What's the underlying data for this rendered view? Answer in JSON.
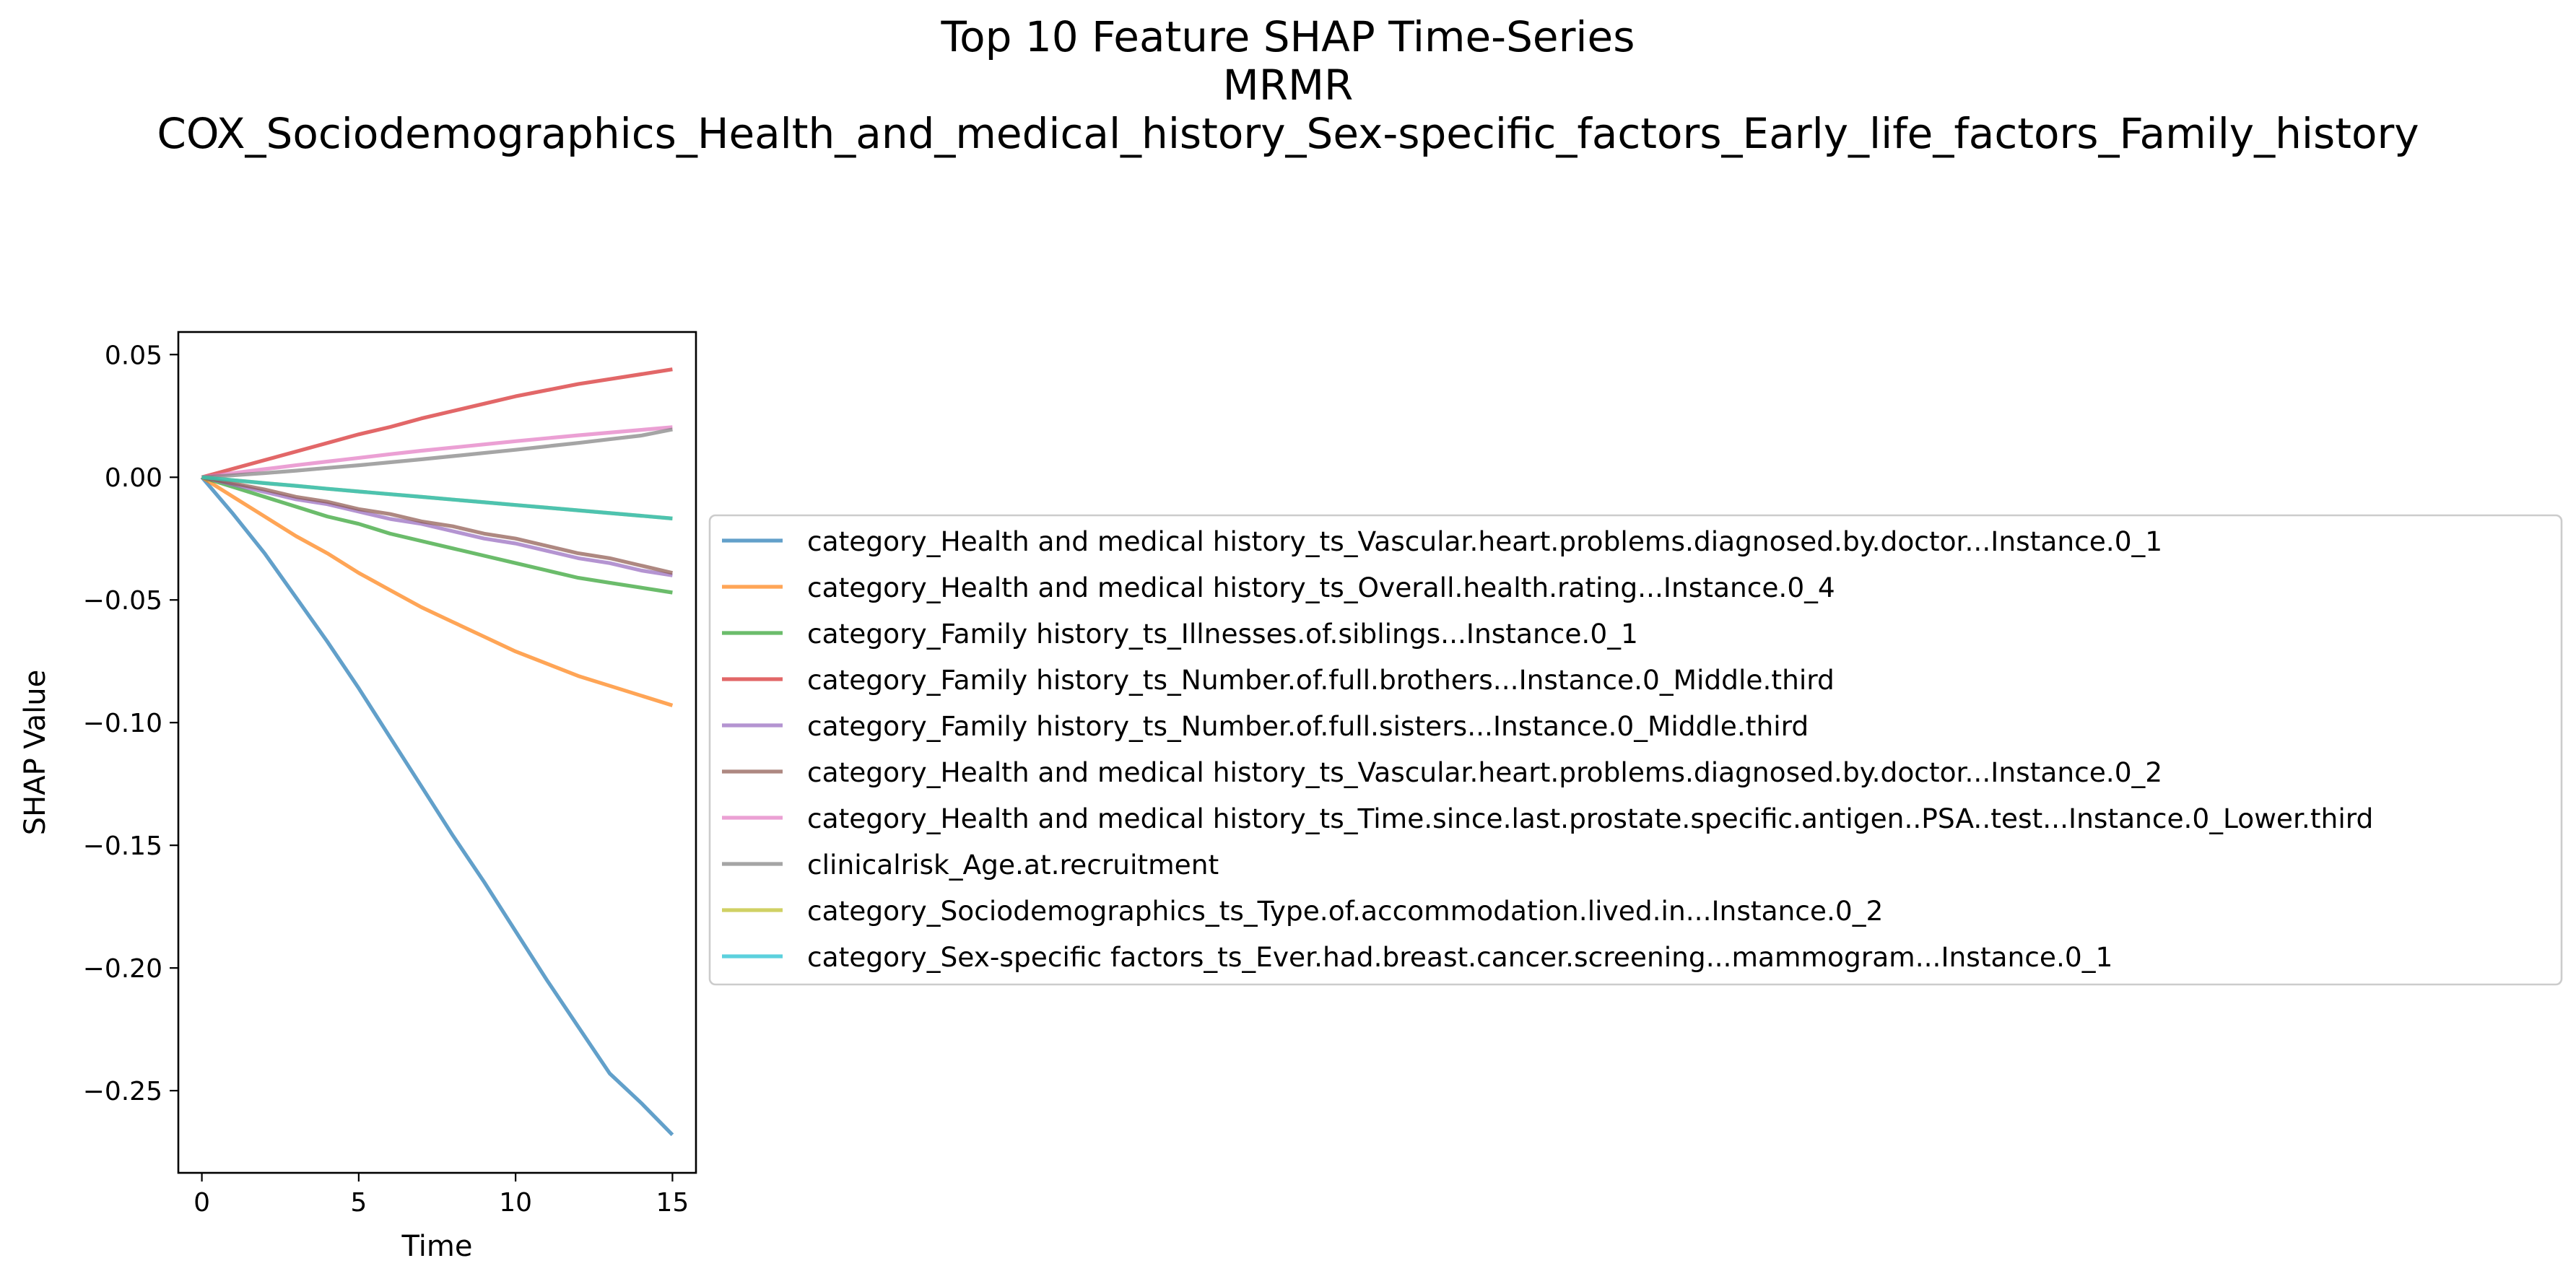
{
  "chart_data": {
    "type": "line",
    "title_lines": [
      "Top 10 Feature SHAP Time-Series",
      "MRMR",
      "COX_Sociodemographics_Health_and_medical_history_Sex-specific_factors_Early_life_factors_Family_history"
    ],
    "xlabel": "Time",
    "ylabel": "SHAP Value",
    "xlim": [
      -0.75,
      15.75
    ],
    "ylim": [
      -0.2835,
      0.0592
    ],
    "xticks": [
      0,
      5,
      10,
      15
    ],
    "xtick_labels": [
      "0",
      "5",
      "10",
      "15"
    ],
    "yticks": [
      0.05,
      0.0,
      -0.05,
      -0.1,
      -0.15,
      -0.2,
      -0.25
    ],
    "ytick_labels": [
      "0.05",
      "0.00",
      "−0.05",
      "−0.10",
      "−0.15",
      "−0.20",
      "−0.25"
    ],
    "grid": false,
    "legend_placement": "center-right, outside plot",
    "x": [
      0,
      1,
      2,
      3,
      4,
      5,
      6,
      7,
      8,
      9,
      10,
      11,
      12,
      13,
      14,
      15
    ],
    "series": [
      {
        "name": "category_Health and medical history_ts_Vascular.heart.problems.diagnosed.by.doctor...Instance.0_1",
        "color": "#1f77b4",
        "values": [
          0,
          -0.015,
          -0.031,
          -0.049,
          -0.067,
          -0.086,
          -0.106,
          -0.126,
          -0.146,
          -0.165,
          -0.185,
          -0.205,
          -0.224,
          -0.243,
          -0.255,
          -0.268
        ]
      },
      {
        "name": "category_Health and medical history_ts_Overall.health.rating...Instance.0_4",
        "color": "#ff7f0e",
        "values": [
          0,
          -0.008,
          -0.016,
          -0.024,
          -0.031,
          -0.039,
          -0.046,
          -0.053,
          -0.059,
          -0.065,
          -0.071,
          -0.076,
          -0.081,
          -0.085,
          -0.089,
          -0.093
        ]
      },
      {
        "name": "category_Family history_ts_Illnesses.of.siblings...Instance.0_1",
        "color": "#2ca02c",
        "values": [
          0,
          -0.004,
          -0.008,
          -0.012,
          -0.016,
          -0.019,
          -0.023,
          -0.026,
          -0.029,
          -0.032,
          -0.035,
          -0.038,
          -0.041,
          -0.043,
          -0.045,
          -0.047
        ]
      },
      {
        "name": "category_Family history_ts_Number.of.full.brothers...Instance.0_Middle.third",
        "color": "#d62728",
        "values": [
          0,
          0.0035,
          0.007,
          0.0105,
          0.014,
          0.0175,
          0.0205,
          0.024,
          0.027,
          0.03,
          0.033,
          0.0355,
          0.038,
          0.04,
          0.042,
          0.044
        ]
      },
      {
        "name": "category_Family history_ts_Number.of.full.sisters...Instance.0_Middle.third",
        "color": "#9467bd",
        "values": [
          0,
          -0.003,
          -0.006,
          -0.009,
          -0.011,
          -0.014,
          -0.017,
          -0.019,
          -0.022,
          -0.025,
          -0.027,
          -0.03,
          -0.033,
          -0.035,
          -0.038,
          -0.04
        ]
      },
      {
        "name": "category_Health and medical history_ts_Vascular.heart.problems.diagnosed.by.doctor...Instance.0_2",
        "color": "#8c564b",
        "values": [
          0,
          -0.0025,
          -0.005,
          -0.008,
          -0.01,
          -0.013,
          -0.015,
          -0.018,
          -0.02,
          -0.023,
          -0.025,
          -0.028,
          -0.031,
          -0.033,
          -0.036,
          -0.039
        ]
      },
      {
        "name": "category_Health and medical history_ts_Time.since.last.prostate.specific.antigen..PSA..test...Instance.0_Lower.third",
        "color": "#e377c2",
        "values": [
          0,
          0.0017,
          0.0033,
          0.0049,
          0.0064,
          0.0079,
          0.0094,
          0.0108,
          0.0121,
          0.0134,
          0.0147,
          0.0159,
          0.0171,
          0.0182,
          0.0193,
          0.0204
        ]
      },
      {
        "name": "clinicalrisk_Age.at.recruitment",
        "color": "#7f7f7f",
        "values": [
          0,
          0.0008,
          0.0017,
          0.0027,
          0.0038,
          0.0049,
          0.0061,
          0.0073,
          0.0086,
          0.0099,
          0.0112,
          0.0126,
          0.014,
          0.0155,
          0.017,
          0.0195
        ]
      },
      {
        "name": "category_Sociodemographics_ts_Type.of.accommodation.lived.in...Instance.0_2",
        "color": "#bcbd22",
        "values": [
          0,
          -0.0012,
          -0.0024,
          -0.0035,
          -0.0047,
          -0.0058,
          -0.0069,
          -0.008,
          -0.0091,
          -0.0102,
          -0.0113,
          -0.0124,
          -0.0135,
          -0.0146,
          -0.0157,
          -0.0168
        ]
      },
      {
        "name": "category_Sex-specific factors_ts_Ever.had.breast.cancer.screening...mammogram...Instance.0_1",
        "color": "#17becf",
        "values": [
          0,
          -0.0012,
          -0.0024,
          -0.0035,
          -0.0047,
          -0.0058,
          -0.0069,
          -0.008,
          -0.0091,
          -0.0102,
          -0.0113,
          -0.0124,
          -0.0135,
          -0.0146,
          -0.0157,
          -0.0168
        ]
      }
    ]
  }
}
